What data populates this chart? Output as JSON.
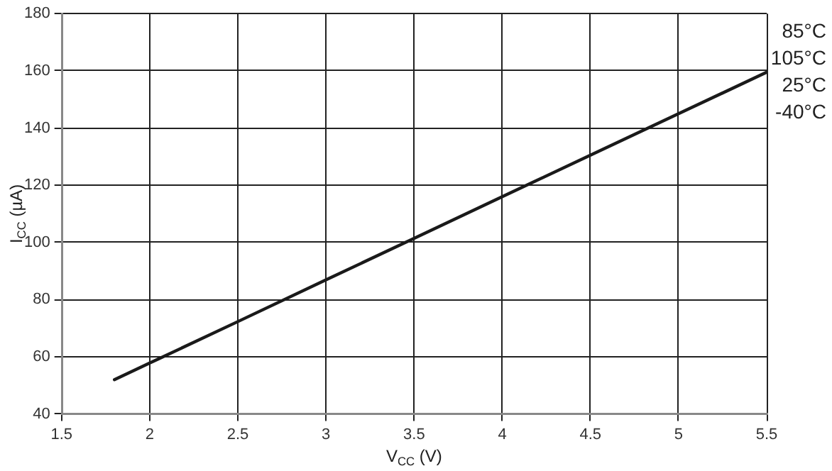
{
  "chart_data": {
    "type": "line",
    "xlabel": "V$_{CC}$ (V)",
    "ylabel": "I$_{CC}$ (µA)",
    "x": [
      1.8,
      2,
      2.5,
      3,
      3.5,
      4,
      4.5,
      5,
      5.5
    ],
    "series": [
      {
        "color": "#1a1a1a",
        "values": [
          52,
          57.8,
          72.3,
          86.9,
          101.4,
          116,
          130.5,
          145,
          159.5
        ]
      }
    ],
    "annotations": [
      "85°C",
      "105°C",
      "25°C",
      "-40°C"
    ],
    "xlim": [
      1.5,
      5.5
    ],
    "xticks": [
      1.5,
      2,
      2.5,
      3,
      3.5,
      4,
      4.5,
      5,
      5.5
    ],
    "ylim": [
      40,
      180
    ],
    "yticks": [
      40,
      60,
      80,
      100,
      120,
      140,
      160,
      180
    ],
    "grid": true,
    "marker": "none",
    "line_style": "solid",
    "legend": false
  }
}
